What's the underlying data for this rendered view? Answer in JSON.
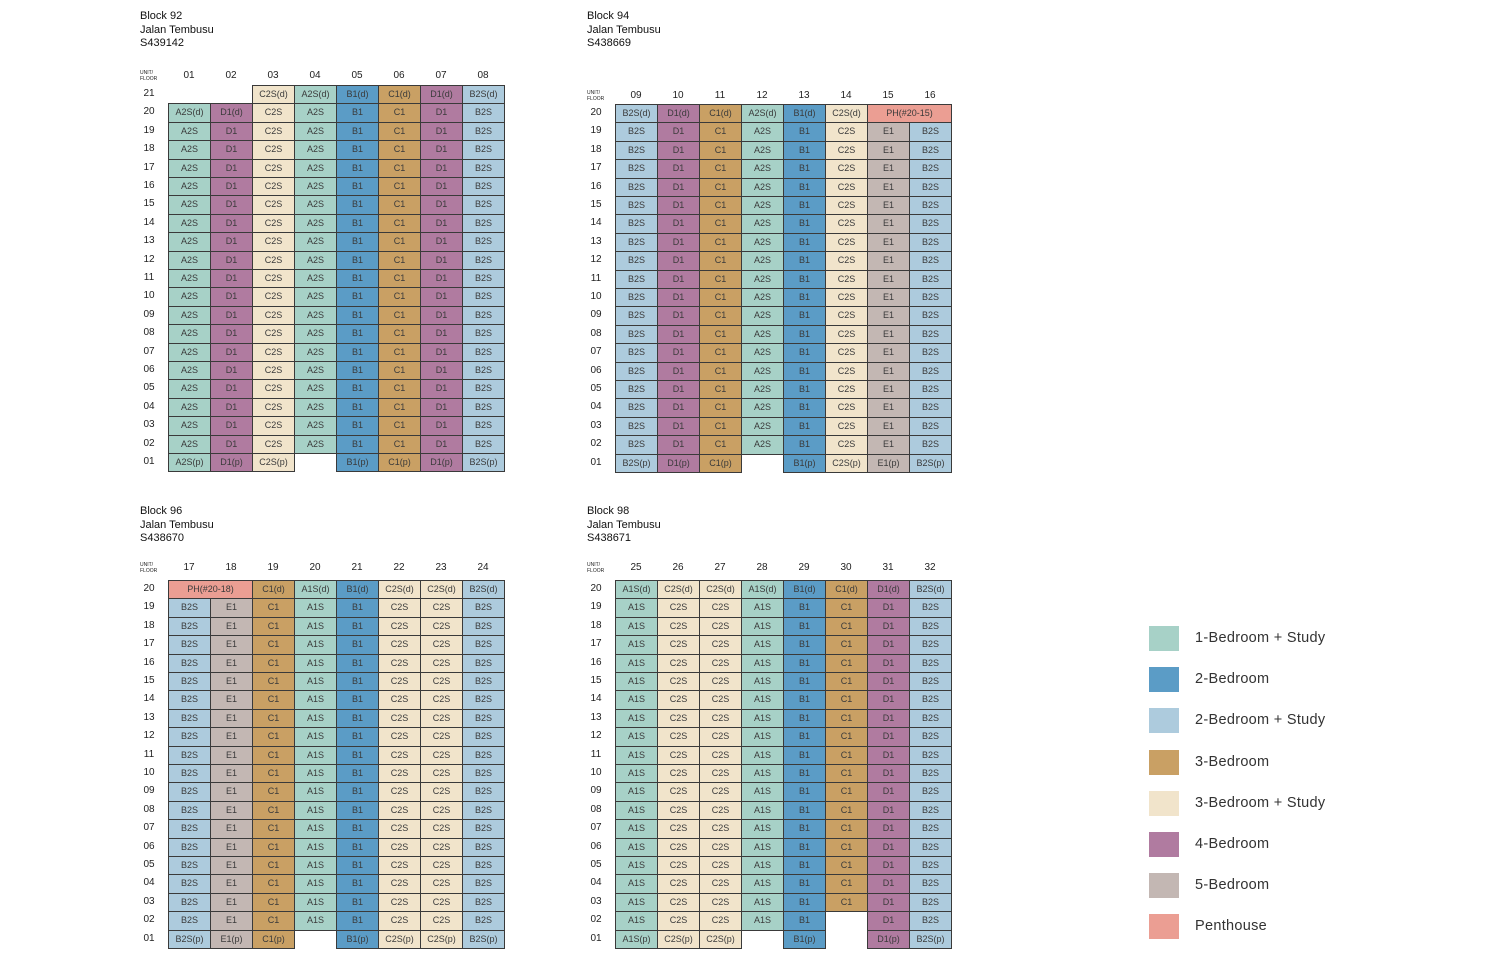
{
  "colors": {
    "A": "#a7d1c7",
    "B1": "#5b9cc6",
    "B2": "#adcbdd",
    "C1": "#c9a064",
    "C2": "#f1e4cb",
    "D": "#b07ba0",
    "E": "#c3b7b3",
    "PH": "#eb9e93"
  },
  "corner_label": [
    "UNIT/",
    "FLOOR"
  ],
  "blocks": [
    {
      "name": "Block 92",
      "street": "Jalan Tembusu",
      "postal": "S439142",
      "units": [
        "01",
        "02",
        "03",
        "04",
        "05",
        "06",
        "07",
        "08"
      ],
      "types": [
        "A",
        "D",
        "C2",
        "A",
        "B1",
        "C1",
        "D",
        "B2"
      ],
      "labels": [
        "A2S",
        "D1",
        "C2S",
        "A2S",
        "B1",
        "C1",
        "D1",
        "B2S"
      ],
      "top_floor": 21,
      "top_floor_cells": [
        "",
        "",
        "C2S(d)",
        "A2S(d)",
        "B1(d)",
        "C1(d)",
        "D1(d)",
        "B2S(d)"
      ],
      "floor20_cells": [
        "A2S(d)",
        "D1(d)",
        "C2S",
        "A2S",
        "B1",
        "C1",
        "D1",
        "B2S"
      ],
      "floor01_cells": [
        "A2S(p)",
        "D1(p)",
        "C2S(p)",
        "",
        "B1(p)",
        "C1(p)",
        "D1(p)",
        "B2S(p)"
      ],
      "floor02_cells": null
    },
    {
      "name": "Block 94",
      "street": "Jalan Tembusu",
      "postal": "S438669",
      "units": [
        "09",
        "10",
        "11",
        "12",
        "13",
        "14",
        "15",
        "16"
      ],
      "types": [
        "B2",
        "D",
        "C1",
        "A",
        "B1",
        "C2",
        "E",
        "B2"
      ],
      "labels": [
        "B2S",
        "D1",
        "C1",
        "A2S",
        "B1",
        "C2S",
        "E1",
        "B2S"
      ],
      "top_floor": 20,
      "top_floor_cells": [
        "B2S(d)",
        "D1(d)",
        "C1(d)",
        "A2S(d)",
        "B1(d)",
        "C2S(d)",
        "PH(#20-15)",
        ""
      ],
      "floor20_cells": null,
      "floor01_cells": [
        "B2S(p)",
        "D1(p)",
        "C1(p)",
        "",
        "B1(p)",
        "C2S(p)",
        "E1(p)",
        "B2S(p)"
      ],
      "floor02_cells": null
    },
    {
      "name": "Block 96",
      "street": "Jalan Tembusu",
      "postal": "S438670",
      "units": [
        "17",
        "18",
        "19",
        "20",
        "21",
        "22",
        "23",
        "24"
      ],
      "types": [
        "B2",
        "E",
        "C1",
        "A",
        "B1",
        "C2",
        "C2",
        "B2"
      ],
      "labels": [
        "B2S",
        "E1",
        "C1",
        "A1S",
        "B1",
        "C2S",
        "C2S",
        "B2S"
      ],
      "top_floor": 20,
      "top_floor_cells": [
        "PH(#20-18)",
        "",
        "C1(d)",
        "A1S(d)",
        "B1(d)",
        "C2S(d)",
        "C2S(d)",
        "B2S(d)"
      ],
      "floor20_cells": null,
      "floor01_cells": [
        "B2S(p)",
        "E1(p)",
        "C1(p)",
        "",
        "B1(p)",
        "C2S(p)",
        "C2S(p)",
        "B2S(p)"
      ],
      "floor02_cells": null
    },
    {
      "name": "Block 98",
      "street": "Jalan Tembusu",
      "postal": "S438671",
      "units": [
        "25",
        "26",
        "27",
        "28",
        "29",
        "30",
        "31",
        "32"
      ],
      "types": [
        "A",
        "C2",
        "C2",
        "A",
        "B1",
        "C1",
        "D",
        "B2"
      ],
      "labels": [
        "A1S",
        "C2S",
        "C2S",
        "A1S",
        "B1",
        "C1",
        "D1",
        "B2S"
      ],
      "top_floor": 20,
      "top_floor_cells": [
        "A1S(d)",
        "C2S(d)",
        "C2S(d)",
        "A1S(d)",
        "B1(d)",
        "C1(d)",
        "D1(d)",
        "B2S(d)"
      ],
      "floor20_cells": null,
      "floor01_cells": [
        "A1S(p)",
        "C2S(p)",
        "C2S(p)",
        "",
        "B1(p)",
        "",
        "D1(p)",
        "B2S(p)"
      ],
      "floor02_cells": [
        "A1S",
        "C2S",
        "C2S",
        "A1S",
        "B1",
        "",
        "D1",
        "B2S"
      ]
    }
  ],
  "legend": [
    {
      "label": "1-Bedroom + Study",
      "type": "A"
    },
    {
      "label": "2-Bedroom",
      "type": "B1"
    },
    {
      "label": "2-Bedroom + Study",
      "type": "B2"
    },
    {
      "label": "3-Bedroom",
      "type": "C1"
    },
    {
      "label": "3-Bedroom + Study",
      "type": "C2"
    },
    {
      "label": "4-Bedroom",
      "type": "D"
    },
    {
      "label": "5-Bedroom",
      "type": "E"
    },
    {
      "label": "Penthouse",
      "type": "PH"
    }
  ]
}
